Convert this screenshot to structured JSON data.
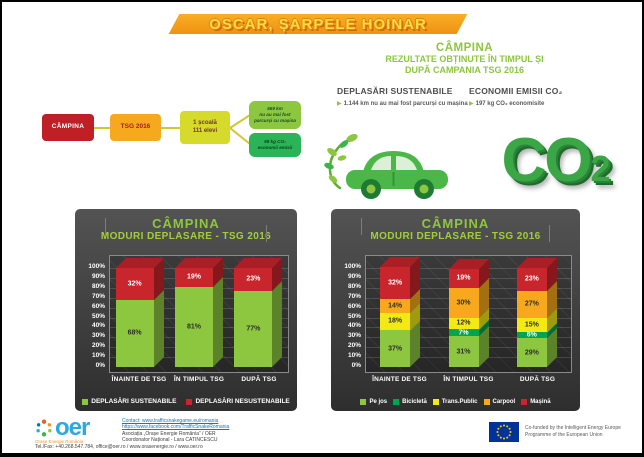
{
  "banner": {
    "title": "OSCAR, ȘARPELE HOINAR"
  },
  "header": {
    "city": "CÂMPINA",
    "subtitle1": "REZULTATE OBȚINUTE ÎN TIMPUL ȘI",
    "subtitle2": "DUPĂ CAMPANIA TSG 2016",
    "sustainable": {
      "title": "DEPLASĂRI SUSTENABILE",
      "value": "1.144 km nu au mai fost parcurși cu mașina"
    },
    "co2": {
      "title": "ECONOMII EMISII CO₂",
      "value": "197 kg CO₂ economisite"
    }
  },
  "flowchart": {
    "city": "CÂMPINA",
    "campaign": "TSG 2016",
    "school_line1": "1 școală",
    "school_line2": "111 elevi",
    "km_line1": "569 km",
    "km_line2": "nu au mai fost",
    "km_line3": "parcurși cu mașina",
    "co2_line1": "98 kg CO₂",
    "co2_line2": "economii emisii",
    "node_colors": {
      "city": "#BE2026",
      "campaign": "#F7A91D",
      "school": "#D6DA2B",
      "km": "#8DC63F",
      "co2": "#2BB357"
    }
  },
  "illustration": {
    "co2_base": "CO",
    "co2_sub": "2"
  },
  "chart_data": [
    {
      "type": "bar",
      "stacked": true,
      "title": "CÂMPINA",
      "subtitle": "MODURI DEPLASARE - TSG 2016",
      "categories": [
        "ÎNAINTE DE TSG",
        "ÎN TIMPUL TSG",
        "DUPĂ TSG"
      ],
      "series": [
        {
          "name": "DEPLASĂRI SUSTENABILE",
          "color": "#8DC63F",
          "values": [
            68,
            81,
            77
          ]
        },
        {
          "name": "DEPLASĂRI NESUSTENABILE",
          "color": "#C9252C",
          "values": [
            32,
            19,
            23
          ]
        }
      ],
      "xlabel": "",
      "ylabel": "",
      "ylim": [
        0,
        100
      ],
      "ytick_step": 10,
      "ytick_suffix": "%",
      "grid": true,
      "legend_position": "bottom",
      "value_labels": true
    },
    {
      "type": "bar",
      "stacked": true,
      "title": "CÂMPINA",
      "subtitle": "MODURI DEPLASARE - TSG 2016",
      "categories": [
        "ÎNAINTE DE TSG",
        "ÎN TIMPUL TSG",
        "DUPĂ TSG"
      ],
      "series": [
        {
          "name": "Pe jos",
          "color": "#8DC63F",
          "values": [
            37,
            31,
            29
          ]
        },
        {
          "name": "Bicicletă",
          "color": "#00A551",
          "values": [
            0,
            7,
            6
          ]
        },
        {
          "name": "Trans.Public",
          "color": "#F3EA15",
          "values": [
            18,
            12,
            15
          ]
        },
        {
          "name": "Carpool",
          "color": "#F7A81C",
          "values": [
            14,
            30,
            27
          ]
        },
        {
          "name": "Mașină",
          "color": "#C9252C",
          "values": [
            32,
            19,
            23
          ]
        }
      ],
      "xlabel": "",
      "ylabel": "",
      "ylim": [
        0,
        100
      ],
      "ytick_step": 10,
      "ytick_suffix": "%",
      "grid": true,
      "legend_position": "bottom",
      "value_labels": true
    }
  ],
  "footer": {
    "oer": {
      "logo_text": "oer",
      "tagline": "Orașe Energie România",
      "contact_line1": "Contact: www.trafficsnakegame.eu/romania",
      "contact_line2": "https://www.facebook.com/TrafficSnakeRomania",
      "contact_line3": "Asociația „Orașe Energie România” / OER",
      "contact_line4": "Coordonator Național - Lara CATINCESCU",
      "contact_line5a": "Tel./Fax: +40.268.547.784, ",
      "contact_line5b": "office@oer.ro / www.orasenergie.ro / www.oer.ro"
    },
    "eu": {
      "funding_line1": "Co-funded by the Intelligent Energy Europe",
      "funding_line2": "Programme of the European Union"
    }
  }
}
